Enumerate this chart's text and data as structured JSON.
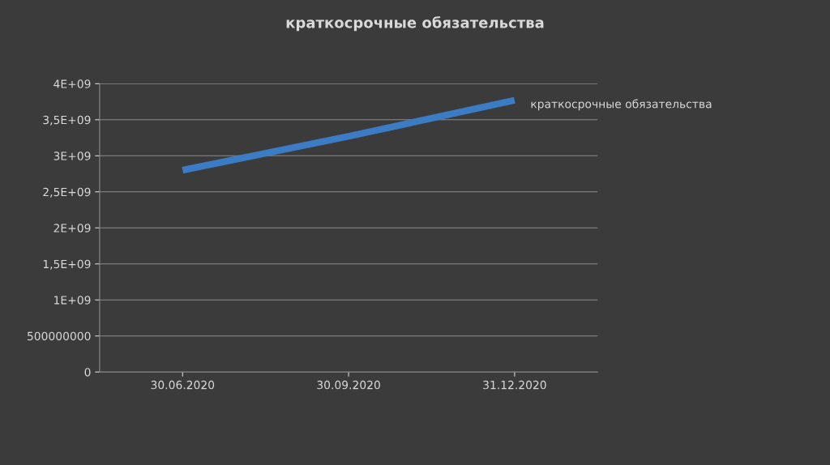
{
  "chart_data": {
    "type": "line",
    "title": "краткосрочные обязательства",
    "categories": [
      "30.06.2020",
      "30.09.2020",
      "31.12.2020"
    ],
    "series": [
      {
        "name": "краткосрочные обязательства",
        "color": "#3c7cc4",
        "values": [
          2800000000,
          3270000000,
          3770000000
        ]
      }
    ],
    "ylim": [
      0,
      4000000000
    ],
    "yticks": [
      0,
      500000000,
      {
        "value": 1000000000,
        "label": "1E+09"
      },
      {
        "value": 1500000000,
        "label": "1,5E+09"
      },
      {
        "value": 2000000000,
        "label": "2E+09"
      },
      {
        "value": 2500000000,
        "label": "2,5E+09"
      },
      {
        "value": 3000000000,
        "label": "3E+09"
      },
      {
        "value": 3500000000,
        "label": "3,5E+09"
      },
      {
        "value": 4000000000,
        "label": "4E+09"
      }
    ],
    "grid": "y",
    "marker": "none",
    "line_style": "solid"
  }
}
